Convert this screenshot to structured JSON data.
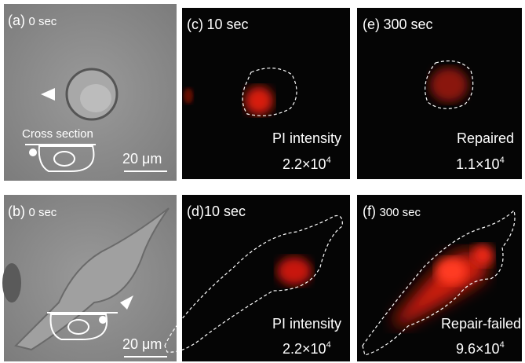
{
  "panels": [
    {
      "label": "(a)",
      "time": "0 sec",
      "scale_bar": "20 μm",
      "inset_label": "Cross section"
    },
    {
      "label": "(b)",
      "time": "0 sec",
      "scale_bar": "20 μm"
    },
    {
      "label": "(c)",
      "time": "10 sec",
      "caption": "PI intensity",
      "value_base": "2.2×10",
      "value_exp": "4"
    },
    {
      "label": "(d)",
      "time": "10 sec",
      "caption": "PI intensity",
      "value_base": "2.2×10",
      "value_exp": "4"
    },
    {
      "label": "(e)",
      "time": "300 sec",
      "caption": "Repaired",
      "value_base": "1.1×10",
      "value_exp": "4"
    },
    {
      "label": "(f)",
      "time": "300 sec",
      "caption": "Repair-failed",
      "value_base": "9.6×10",
      "value_exp": "4"
    }
  ]
}
